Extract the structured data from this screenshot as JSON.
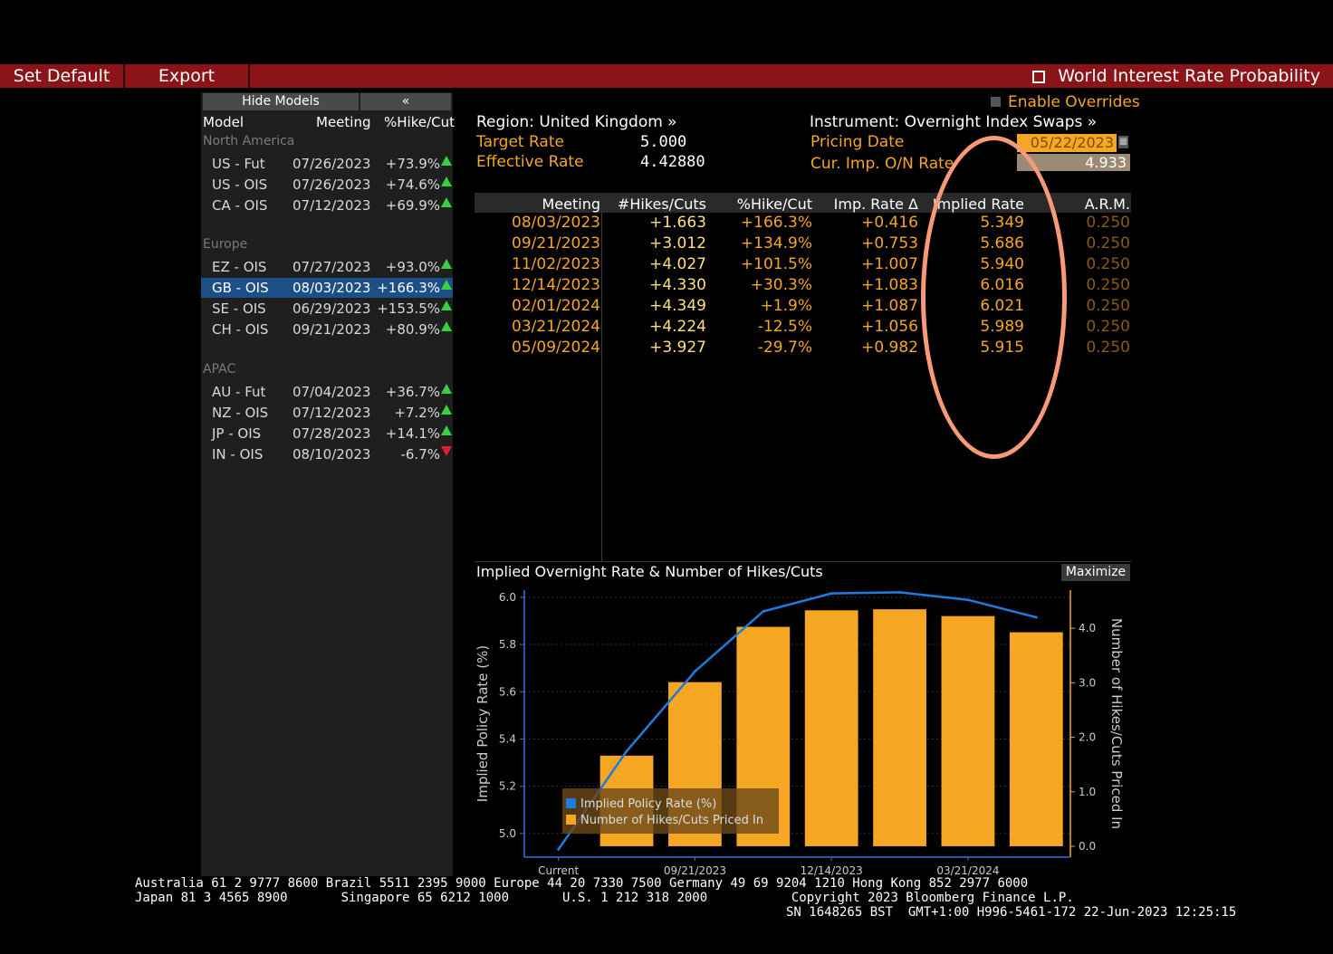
{
  "toolbar": {
    "set_default": "Set Default",
    "export": "Export",
    "title": "World Interest Rate Probability"
  },
  "left_panel": {
    "hide_models": "Hide Models",
    "collapse": "«",
    "columns": [
      "Model",
      "Meeting",
      "%Hike/Cut"
    ],
    "groups": [
      {
        "name": "North America",
        "rows": [
          {
            "model": "US - Fut",
            "meeting": "07/26/2023",
            "pct": "+73.9%",
            "dir": "up"
          },
          {
            "model": "US - OIS",
            "meeting": "07/26/2023",
            "pct": "+74.6%",
            "dir": "up"
          },
          {
            "model": "CA - OIS",
            "meeting": "07/12/2023",
            "pct": "+69.9%",
            "dir": "up"
          }
        ]
      },
      {
        "name": "Europe",
        "rows": [
          {
            "model": "EZ - OIS",
            "meeting": "07/27/2023",
            "pct": "+93.0%",
            "dir": "up"
          },
          {
            "model": "GB - OIS",
            "meeting": "08/03/2023",
            "pct": "+166.3%",
            "dir": "up",
            "selected": true
          },
          {
            "model": "SE - OIS",
            "meeting": "06/29/2023",
            "pct": "+153.5%",
            "dir": "up"
          },
          {
            "model": "CH - OIS",
            "meeting": "09/21/2023",
            "pct": "+80.9%",
            "dir": "up"
          }
        ]
      },
      {
        "name": "APAC",
        "rows": [
          {
            "model": "AU - Fut",
            "meeting": "07/04/2023",
            "pct": "+36.7%",
            "dir": "up"
          },
          {
            "model": "NZ - OIS",
            "meeting": "07/12/2023",
            "pct": "+7.2%",
            "dir": "up"
          },
          {
            "model": "JP - OIS",
            "meeting": "07/28/2023",
            "pct": "+14.1%",
            "dir": "up"
          },
          {
            "model": "IN - OIS",
            "meeting": "08/10/2023",
            "pct": "-6.7%",
            "dir": "down"
          }
        ]
      }
    ]
  },
  "header": {
    "enable_overrides": "Enable Overrides",
    "region": "Region: United Kingdom »",
    "instrument": "Instrument: Overnight Index Swaps »",
    "target_rate_label": "Target Rate",
    "target_rate": "5.000",
    "effective_rate_label": "Effective Rate",
    "effective_rate": "4.42880",
    "pricing_date_label": "Pricing Date",
    "pricing_date": "05/22/2023",
    "cur_imp_label": "Cur. Imp. O/N Rate",
    "cur_imp": "4.933"
  },
  "meetings_table": {
    "columns": [
      "Meeting",
      "#Hikes/Cuts",
      "%Hike/Cut",
      "Imp. Rate Δ",
      "Implied Rate",
      "A.R.M."
    ],
    "rows": [
      {
        "meeting": "08/03/2023",
        "hc": "+1.663",
        "pct": "+166.3%",
        "imp": "+0.416",
        "rate": "5.349",
        "arm": "0.250"
      },
      {
        "meeting": "09/21/2023",
        "hc": "+3.012",
        "pct": "+134.9%",
        "imp": "+0.753",
        "rate": "5.686",
        "arm": "0.250"
      },
      {
        "meeting": "11/02/2023",
        "hc": "+4.027",
        "pct": "+101.5%",
        "imp": "+1.007",
        "rate": "5.940",
        "arm": "0.250"
      },
      {
        "meeting": "12/14/2023",
        "hc": "+4.330",
        "pct": "+30.3%",
        "imp": "+1.083",
        "rate": "6.016",
        "arm": "0.250"
      },
      {
        "meeting": "02/01/2024",
        "hc": "+4.349",
        "pct": "+1.9%",
        "imp": "+1.087",
        "rate": "6.021",
        "arm": "0.250"
      },
      {
        "meeting": "03/21/2024",
        "hc": "+4.224",
        "pct": "-12.5%",
        "imp": "+1.056",
        "rate": "5.989",
        "arm": "0.250"
      },
      {
        "meeting": "05/09/2024",
        "hc": "+3.927",
        "pct": "-29.7%",
        "imp": "+0.982",
        "rate": "5.915",
        "arm": "0.250"
      }
    ]
  },
  "chart": {
    "title": "Implied Overnight Rate & Number of Hikes/Cuts",
    "maximize": "Maximize"
  },
  "chart_data": {
    "type": "bar",
    "categories": [
      "Current",
      "08/03/2023",
      "09/21/2023",
      "11/02/2023",
      "12/14/2023",
      "02/01/2024",
      "03/21/2024",
      "05/09/2024"
    ],
    "x_tick_labels": [
      "Current",
      "09/21/2023",
      "12/14/2023",
      "03/21/2024"
    ],
    "series": [
      {
        "name": "Number of Hikes/Cuts Priced In",
        "kind": "bar",
        "axis": "right",
        "color": "#f5a623",
        "values": [
          null,
          1.663,
          3.012,
          4.027,
          4.33,
          4.349,
          4.224,
          3.927
        ]
      },
      {
        "name": "Implied Policy Rate (%)",
        "kind": "line",
        "axis": "left",
        "color": "#1e7be0",
        "values": [
          4.933,
          5.349,
          5.686,
          5.94,
          6.016,
          6.021,
          5.989,
          5.915
        ]
      }
    ],
    "ylabel": "Implied Policy Rate (%)",
    "ylabel_right": "Number of Hikes/Cuts Priced In",
    "ylim": [
      4.9,
      6.03
    ],
    "ylim_right": [
      -0.2,
      4.7
    ],
    "yticks": [
      "6.0",
      "5.8",
      "5.6",
      "5.4",
      "5.2",
      "5.0"
    ],
    "yticks_right": [
      "4.0",
      "3.0",
      "2.0",
      "1.0",
      "0.0"
    ],
    "legend": "bottom-left",
    "grid": true
  },
  "footer": {
    "line1": "Australia 61 2 9777 8600 Brazil 5511 2395 9000 Europe 44 20 7330 7500 Germany 49 69 9204 1210 Hong Kong 852 2977 6000",
    "line2": "Japan 81 3 4565 8900       Singapore 65 6212 1000       U.S. 1 212 318 2000           Copyright 2023 Bloomberg Finance L.P.",
    "line3": "SN 1648265 BST  GMT+1:00 H996-5461-172 22-Jun-2023 12:25:15"
  }
}
